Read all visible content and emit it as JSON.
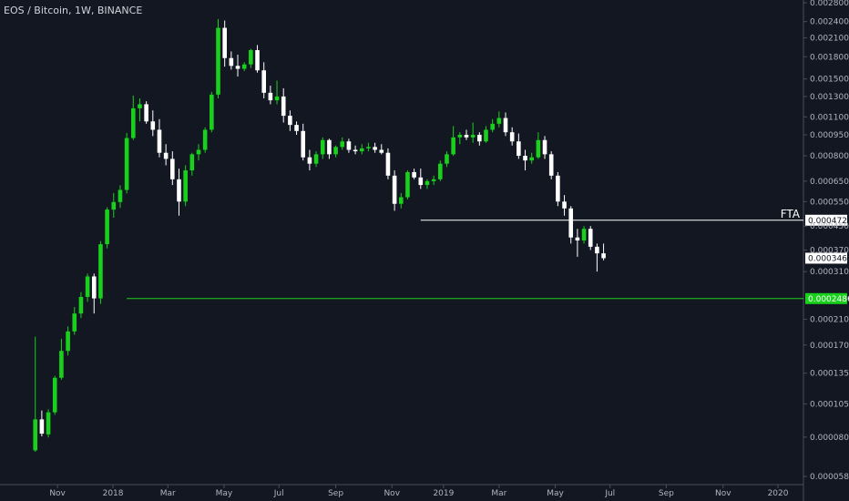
{
  "chart_data": {
    "type": "candlestick",
    "title": "EOS / Bitcoin, 1W, BINANCE",
    "interval": "1W",
    "scale": "log",
    "ylim": [
      5.8e-05,
      0.0028
    ],
    "y_ticks": [
      "0.0028000",
      "0.0024000",
      "0.0021000",
      "0.0018000",
      "0.0015000",
      "0.0013000",
      "0.0011000",
      "0.0009500",
      "0.0008000",
      "0.0006500",
      "0.0005500",
      "0.0004500",
      "0.0003700",
      "0.0003100",
      "0.0002100",
      "0.0001700",
      "0.0001350",
      "0.0001050",
      "0.0000800",
      "0.0000580"
    ],
    "x_ticks": [
      "Nov",
      "2018",
      "Mar",
      "May",
      "Jul",
      "Sep",
      "Nov",
      "2019",
      "Mar",
      "May",
      "Jul",
      "Sep",
      "Nov",
      "2020"
    ],
    "x_tick_weeks": [
      3.4,
      11.9,
      20.3,
      28.9,
      37.3,
      46.0,
      54.6,
      62.5,
      71.0,
      79.6,
      88.0,
      96.6,
      105.3,
      113.7
    ],
    "x_range_weeks": [
      -5.4,
      117.6
    ],
    "colors": {
      "up": "#19d11c",
      "down": "#ffffff",
      "support": "#19d11c",
      "fta": "#ffffff",
      "background": "#131722",
      "text": "#d1d4dc"
    },
    "candles": [
      {
        "o": 7.18e-05,
        "h": 0.000182,
        "l": 7.09e-05,
        "c": 9.25e-05
      },
      {
        "o": 9.25e-05,
        "h": 9.95e-05,
        "l": 8.05e-05,
        "c": 8.23e-05
      },
      {
        "o": 8.18e-05,
        "h": 0.0001005,
        "l": 7.98e-05,
        "c": 9.8e-05
      },
      {
        "o": 9.8e-05,
        "h": 0.000132,
        "l": 9.6e-05,
        "c": 0.00013
      },
      {
        "o": 0.00013,
        "h": 0.000179,
        "l": 0.000128,
        "c": 0.000162
      },
      {
        "o": 0.000162,
        "h": 0.000198,
        "l": 0.000156,
        "c": 0.00019
      },
      {
        "o": 0.00019,
        "h": 0.000232,
        "l": 0.000185,
        "c": 0.00022
      },
      {
        "o": 0.00022,
        "h": 0.000262,
        "l": 0.000212,
        "c": 0.000252
      },
      {
        "o": 0.000252,
        "h": 0.000305,
        "l": 0.000242,
        "c": 0.000298
      },
      {
        "o": 0.000298,
        "h": 0.000305,
        "l": 0.00022,
        "c": 0.000249
      },
      {
        "o": 0.000249,
        "h": 0.000398,
        "l": 0.000238,
        "c": 0.000388
      },
      {
        "o": 0.000388,
        "h": 0.000525,
        "l": 0.000375,
        "c": 0.000515
      },
      {
        "o": 0.000515,
        "h": 0.00059,
        "l": 0.000482,
        "c": 0.000548
      },
      {
        "o": 0.000548,
        "h": 0.000628,
        "l": 0.000522,
        "c": 0.000605
      },
      {
        "o": 0.000605,
        "h": 0.000965,
        "l": 0.000588,
        "c": 0.000925
      },
      {
        "o": 0.000925,
        "h": 0.00131,
        "l": 0.00091,
        "c": 0.00118
      },
      {
        "o": 0.00118,
        "h": 0.00128,
        "l": 0.00106,
        "c": 0.00122
      },
      {
        "o": 0.00122,
        "h": 0.00125,
        "l": 0.00104,
        "c": 0.00106
      },
      {
        "o": 0.00106,
        "h": 0.00116,
        "l": 0.00094,
        "c": 0.00099
      },
      {
        "o": 0.00099,
        "h": 0.00108,
        "l": 0.00079,
        "c": 0.00082
      },
      {
        "o": 0.00082,
        "h": 0.00088,
        "l": 0.00074,
        "c": 0.00078
      },
      {
        "o": 0.00078,
        "h": 0.00083,
        "l": 0.00063,
        "c": 0.00066
      },
      {
        "o": 0.00066,
        "h": 0.00072,
        "l": 0.00049,
        "c": 0.00055
      },
      {
        "o": 0.00055,
        "h": 0.00074,
        "l": 0.00053,
        "c": 0.00071
      },
      {
        "o": 0.00071,
        "h": 0.00082,
        "l": 0.00068,
        "c": 0.00081
      },
      {
        "o": 0.00081,
        "h": 0.00088,
        "l": 0.00077,
        "c": 0.00084
      },
      {
        "o": 0.00084,
        "h": 0.00101,
        "l": 0.00082,
        "c": 0.00099
      },
      {
        "o": 0.00099,
        "h": 0.00135,
        "l": 0.00097,
        "c": 0.00132
      },
      {
        "o": 0.00132,
        "h": 0.00245,
        "l": 0.00128,
        "c": 0.00228
      },
      {
        "o": 0.00228,
        "h": 0.00242,
        "l": 0.00166,
        "c": 0.00178
      },
      {
        "o": 0.00178,
        "h": 0.00188,
        "l": 0.00162,
        "c": 0.00167
      },
      {
        "o": 0.00167,
        "h": 0.00183,
        "l": 0.00153,
        "c": 0.00163
      },
      {
        "o": 0.00163,
        "h": 0.00172,
        "l": 0.0016,
        "c": 0.00169
      },
      {
        "o": 0.00169,
        "h": 0.00192,
        "l": 0.00164,
        "c": 0.0019
      },
      {
        "o": 0.0019,
        "h": 0.00198,
        "l": 0.00158,
        "c": 0.00161
      },
      {
        "o": 0.00161,
        "h": 0.00172,
        "l": 0.00128,
        "c": 0.00134
      },
      {
        "o": 0.00134,
        "h": 0.00142,
        "l": 0.00122,
        "c": 0.00126
      },
      {
        "o": 0.00126,
        "h": 0.00148,
        "l": 0.00122,
        "c": 0.0013
      },
      {
        "o": 0.0013,
        "h": 0.00139,
        "l": 0.00105,
        "c": 0.00111
      },
      {
        "o": 0.00111,
        "h": 0.00116,
        "l": 0.00098,
        "c": 0.00103
      },
      {
        "o": 0.00103,
        "h": 0.00106,
        "l": 0.00095,
        "c": 0.00098
      },
      {
        "o": 0.00098,
        "h": 0.00104,
        "l": 0.00077,
        "c": 0.00079
      },
      {
        "o": 0.00079,
        "h": 0.00084,
        "l": 0.00071,
        "c": 0.00075
      },
      {
        "o": 0.00075,
        "h": 0.00083,
        "l": 0.00073,
        "c": 0.00081
      },
      {
        "o": 0.00081,
        "h": 0.00093,
        "l": 0.00078,
        "c": 0.00091
      },
      {
        "o": 0.00091,
        "h": 0.00092,
        "l": 0.00078,
        "c": 0.00081
      },
      {
        "o": 0.00081,
        "h": 0.00087,
        "l": 0.00079,
        "c": 0.00086
      },
      {
        "o": 0.00086,
        "h": 0.00093,
        "l": 0.00084,
        "c": 0.0009
      },
      {
        "o": 0.0009,
        "h": 0.00092,
        "l": 0.00082,
        "c": 0.00084
      },
      {
        "o": 0.00084,
        "h": 0.00087,
        "l": 0.00081,
        "c": 0.00083
      },
      {
        "o": 0.00083,
        "h": 0.00088,
        "l": 0.00081,
        "c": 0.00085
      },
      {
        "o": 0.00085,
        "h": 0.00089,
        "l": 0.00083,
        "c": 0.00086
      },
      {
        "o": 0.00086,
        "h": 0.00089,
        "l": 0.00082,
        "c": 0.00084
      },
      {
        "o": 0.00084,
        "h": 0.00088,
        "l": 0.00081,
        "c": 0.00082
      },
      {
        "o": 0.00082,
        "h": 0.00085,
        "l": 0.00066,
        "c": 0.00068
      },
      {
        "o": 0.00068,
        "h": 0.00071,
        "l": 0.00051,
        "c": 0.00054
      },
      {
        "o": 0.00054,
        "h": 0.00059,
        "l": 0.00052,
        "c": 0.00057
      },
      {
        "o": 0.00057,
        "h": 0.00071,
        "l": 0.00056,
        "c": 0.0007
      },
      {
        "o": 0.0007,
        "h": 0.00072,
        "l": 0.00066,
        "c": 0.00067
      },
      {
        "o": 0.00067,
        "h": 0.00072,
        "l": 0.00061,
        "c": 0.00063
      },
      {
        "o": 0.00063,
        "h": 0.00066,
        "l": 0.00061,
        "c": 0.00065
      },
      {
        "o": 0.00065,
        "h": 0.00068,
        "l": 0.00063,
        "c": 0.00066
      },
      {
        "o": 0.00066,
        "h": 0.00077,
        "l": 0.00065,
        "c": 0.00075
      },
      {
        "o": 0.00075,
        "h": 0.00083,
        "l": 0.00073,
        "c": 0.00081
      },
      {
        "o": 0.00081,
        "h": 0.00102,
        "l": 0.0008,
        "c": 0.00093
      },
      {
        "o": 0.00093,
        "h": 0.00097,
        "l": 0.00088,
        "c": 0.00095
      },
      {
        "o": 0.00095,
        "h": 0.00099,
        "l": 0.00091,
        "c": 0.00093
      },
      {
        "o": 0.00093,
        "h": 0.00105,
        "l": 0.00089,
        "c": 0.00095
      },
      {
        "o": 0.00095,
        "h": 0.00097,
        "l": 0.00087,
        "c": 0.0009
      },
      {
        "o": 0.0009,
        "h": 0.00102,
        "l": 0.00089,
        "c": 0.00099
      },
      {
        "o": 0.00099,
        "h": 0.00108,
        "l": 0.00097,
        "c": 0.00104
      },
      {
        "o": 0.00104,
        "h": 0.00115,
        "l": 0.00101,
        "c": 0.00109
      },
      {
        "o": 0.00109,
        "h": 0.00114,
        "l": 0.00094,
        "c": 0.00097
      },
      {
        "o": 0.00097,
        "h": 0.00101,
        "l": 0.00087,
        "c": 0.0009
      },
      {
        "o": 0.0009,
        "h": 0.00096,
        "l": 0.00078,
        "c": 0.0008
      },
      {
        "o": 0.0008,
        "h": 0.00084,
        "l": 0.00071,
        "c": 0.00077
      },
      {
        "o": 0.00077,
        "h": 0.00082,
        "l": 0.00075,
        "c": 0.00079
      },
      {
        "o": 0.00079,
        "h": 0.00097,
        "l": 0.00078,
        "c": 0.00091
      },
      {
        "o": 0.00091,
        "h": 0.00094,
        "l": 0.00078,
        "c": 0.00081
      },
      {
        "o": 0.00081,
        "h": 0.00083,
        "l": 0.00066,
        "c": 0.00068
      },
      {
        "o": 0.00068,
        "h": 0.0007,
        "l": 0.00053,
        "c": 0.00055
      },
      {
        "o": 0.00055,
        "h": 0.00058,
        "l": 0.00049,
        "c": 0.00052
      },
      {
        "o": 0.00052,
        "h": 0.00053,
        "l": 0.00039,
        "c": 0.00041
      },
      {
        "o": 0.00041,
        "h": 0.00044,
        "l": 0.00035,
        "c": 0.0004
      },
      {
        "o": 0.0004,
        "h": 0.00045,
        "l": 0.00039,
        "c": 0.00044
      },
      {
        "o": 0.00044,
        "h": 0.00045,
        "l": 0.00037,
        "c": 0.00038
      },
      {
        "o": 0.00038,
        "h": 0.00039,
        "l": 0.00031,
        "c": 0.00036
      },
      {
        "o": 0.00036,
        "h": 0.00039,
        "l": 0.00034,
        "c": 0.000346
      }
    ],
    "levels": [
      {
        "name": "FTA",
        "value": 0.0004721,
        "price_label": "0.0004721",
        "start_week": 59,
        "color": "#ffffff"
      },
      {
        "name": "",
        "value": 0.0002486,
        "price_label": "0.0002486",
        "start_week": 14,
        "color": "#19d11c"
      }
    ],
    "last_price_label": "0.0003460",
    "legend": "top-left"
  }
}
